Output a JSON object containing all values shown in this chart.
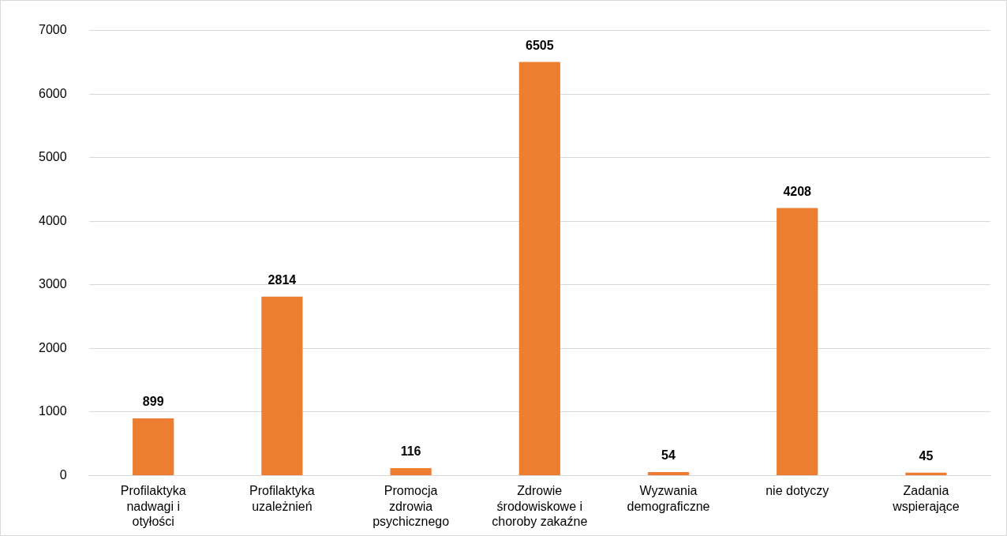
{
  "chart_data": {
    "type": "bar",
    "categories": [
      "Profilaktyka nadwagi i otyłości",
      "Profilaktyka uzależnień",
      "Promocja zdrowia psychicznego",
      "Zdrowie środowiskowe i choroby zakaźne",
      "Wyzwania demograficzne",
      "nie dotyczy",
      "Zadania wspierające"
    ],
    "values": [
      899,
      2814,
      116,
      6505,
      54,
      4208,
      45
    ],
    "color": "#ed7d31",
    "ylim": [
      0,
      7000
    ],
    "yticks": [
      0,
      1000,
      2000,
      3000,
      4000,
      5000,
      6000,
      7000
    ],
    "grid": "y",
    "legend": false,
    "data_labels": true
  }
}
